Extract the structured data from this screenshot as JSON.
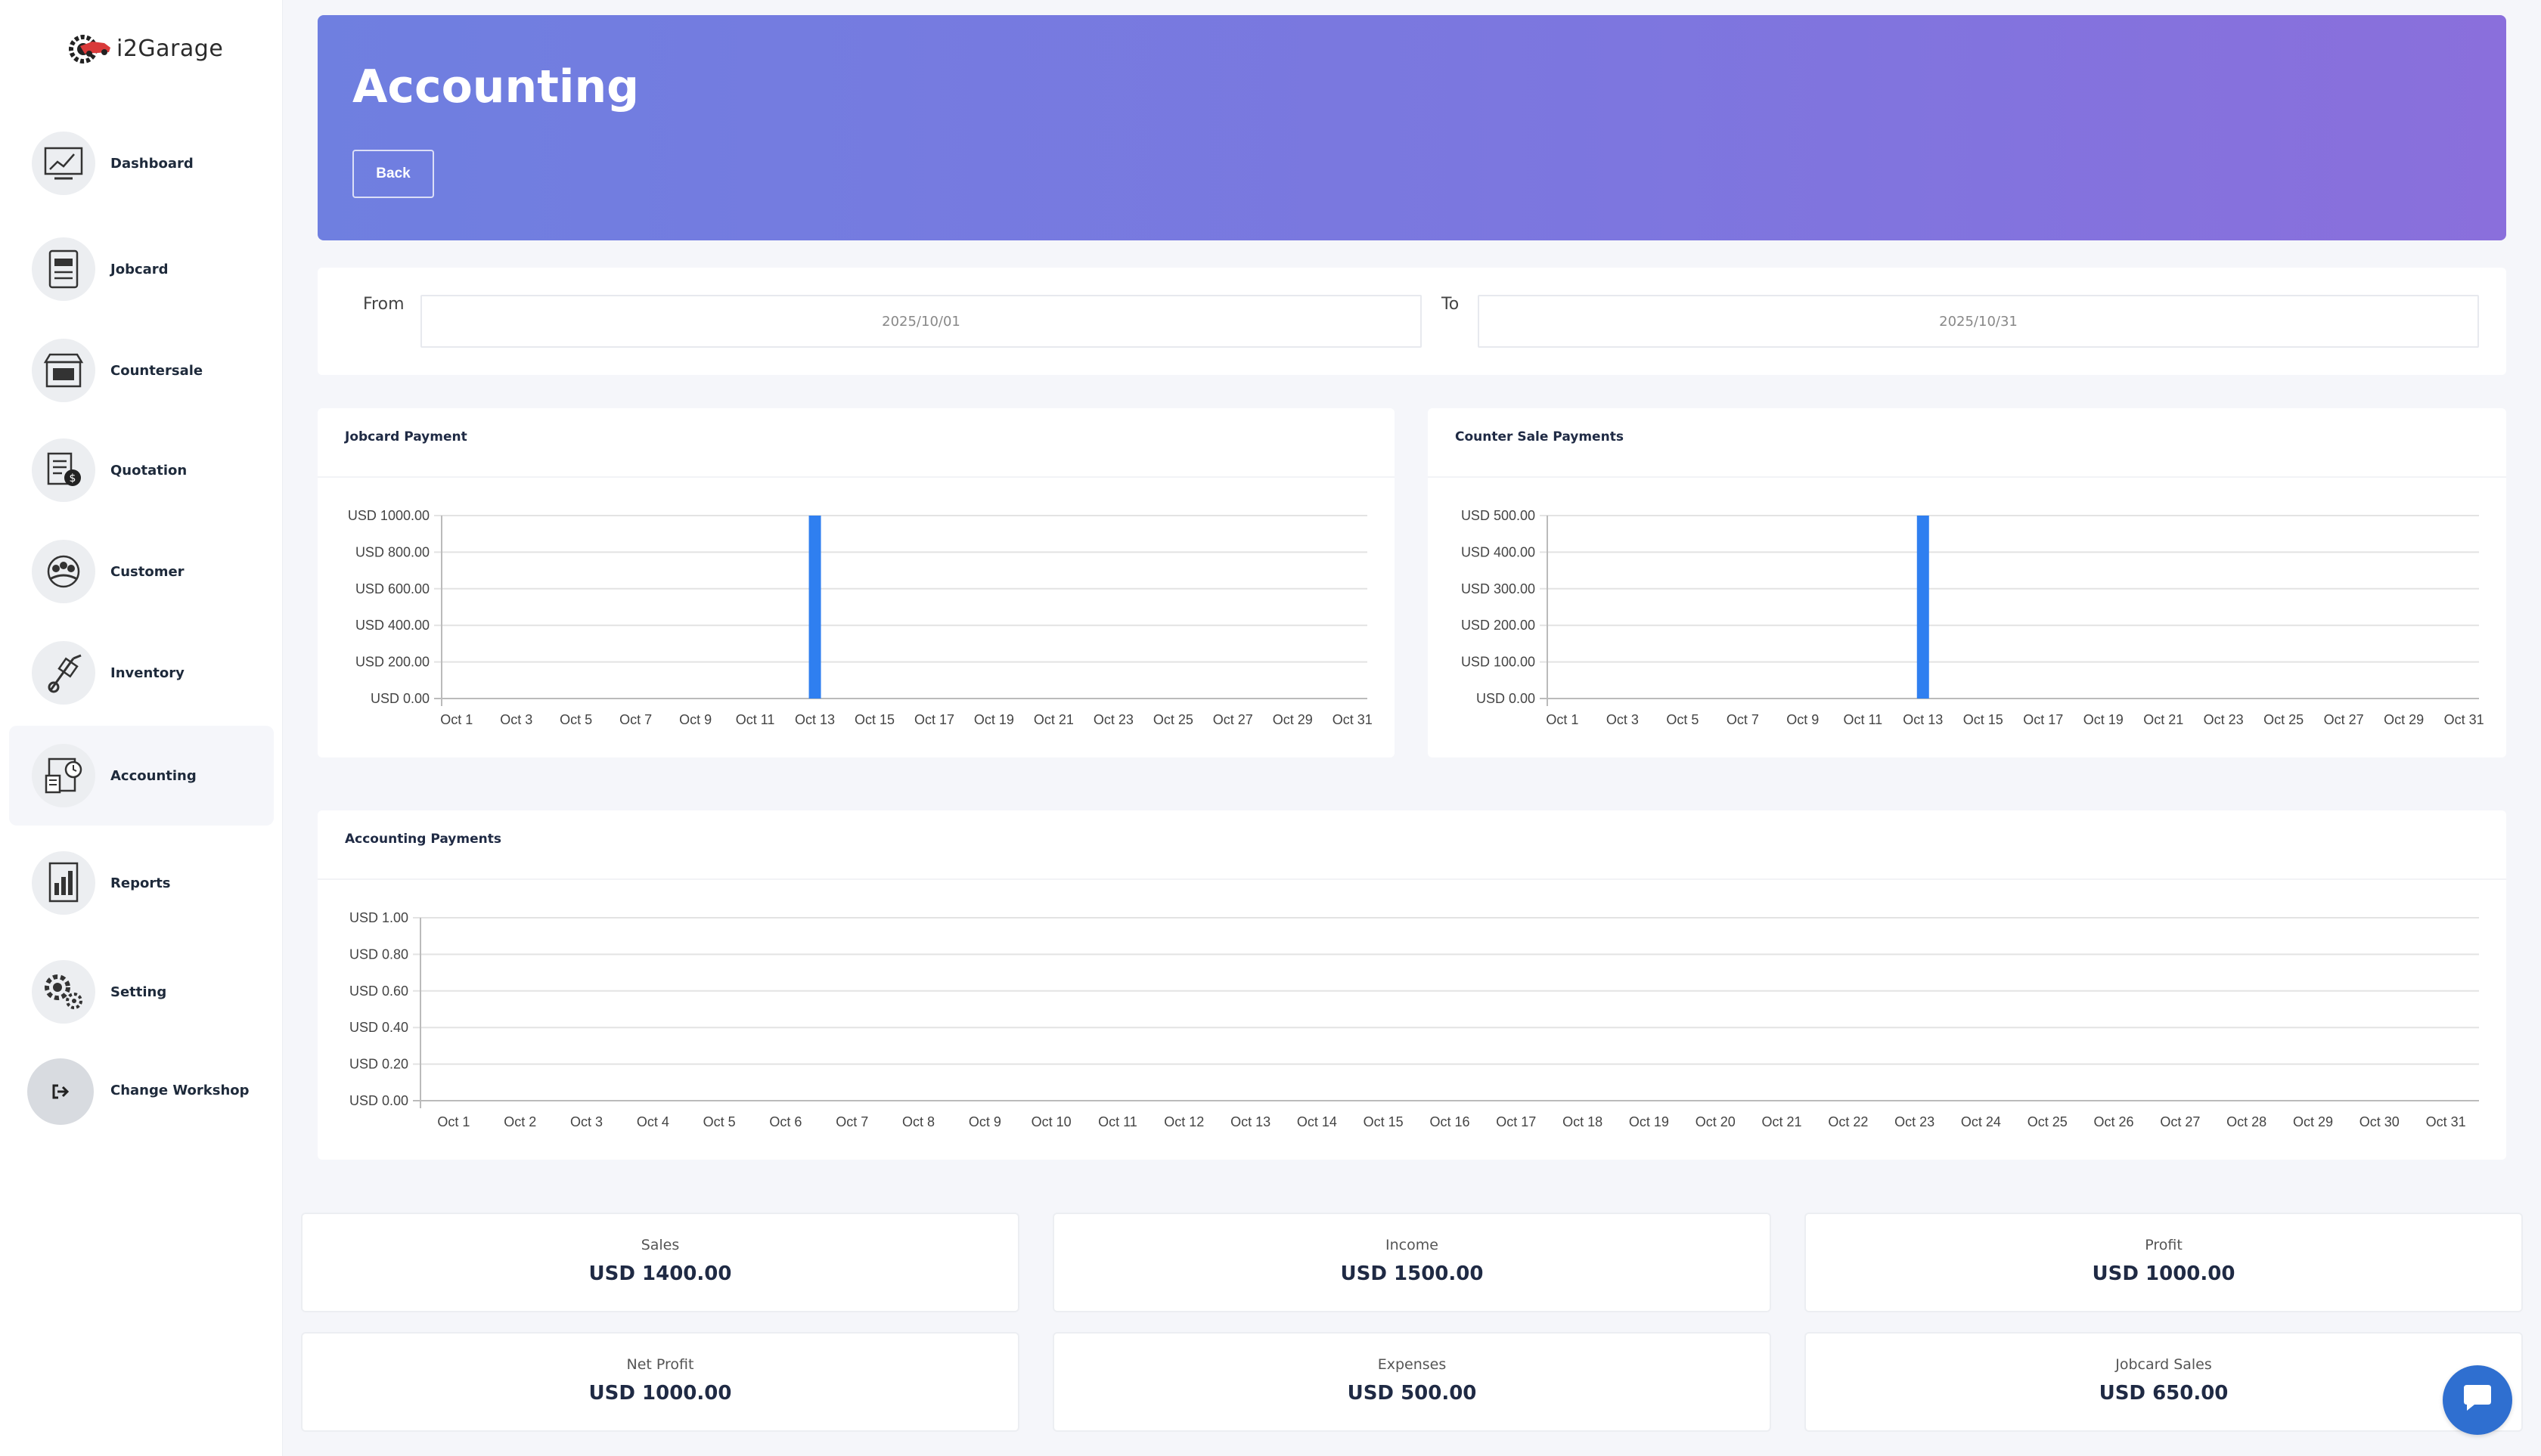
{
  "app": {
    "name": "i2Garage"
  },
  "sidebar": {
    "items": [
      {
        "label": "Dashboard",
        "icon": "dashboard-icon"
      },
      {
        "label": "Jobcard",
        "icon": "jobcard-icon"
      },
      {
        "label": "Countersale",
        "icon": "store-icon"
      },
      {
        "label": "Quotation",
        "icon": "quotation-icon"
      },
      {
        "label": "Customer",
        "icon": "customer-icon"
      },
      {
        "label": "Inventory",
        "icon": "trolley-icon"
      },
      {
        "label": "Accounting",
        "icon": "accounting-icon",
        "active": true
      },
      {
        "label": "Reports",
        "icon": "report-icon"
      },
      {
        "label": "Setting",
        "icon": "gears-icon"
      },
      {
        "label": "Change Workshop",
        "icon": "sign-out-icon"
      }
    ]
  },
  "header": {
    "title": "Accounting",
    "back_label": "Back"
  },
  "filter": {
    "from_label": "From",
    "from_value": "2025/10/01",
    "to_label": "To",
    "to_value": "2025/10/31"
  },
  "colors": {
    "bar": "#2f7ff0",
    "accent_start": "#6f7fe0",
    "accent_end": "#8a6fdc",
    "chat": "#2f6fd0"
  },
  "charts": {
    "jobcard": {
      "title": "Jobcard Payment"
    },
    "counter": {
      "title": "Counter Sale Payments"
    },
    "accounting": {
      "title": "Accounting Payments"
    }
  },
  "chart_data": [
    {
      "type": "bar",
      "title": "Jobcard Payment",
      "categories": [
        "Oct 1",
        "Oct 2",
        "Oct 3",
        "Oct 4",
        "Oct 5",
        "Oct 6",
        "Oct 7",
        "Oct 8",
        "Oct 9",
        "Oct 10",
        "Oct 11",
        "Oct 12",
        "Oct 13",
        "Oct 14",
        "Oct 15",
        "Oct 16",
        "Oct 17",
        "Oct 18",
        "Oct 19",
        "Oct 20",
        "Oct 21",
        "Oct 22",
        "Oct 23",
        "Oct 24",
        "Oct 25",
        "Oct 26",
        "Oct 27",
        "Oct 28",
        "Oct 29",
        "Oct 30",
        "Oct 31"
      ],
      "x_tick_labels": [
        "Oct 1",
        "Oct 3",
        "Oct 5",
        "Oct 7",
        "Oct 9",
        "Oct 11",
        "Oct 13",
        "Oct 15",
        "Oct 17",
        "Oct 19",
        "Oct 21",
        "Oct 23",
        "Oct 25",
        "Oct 27",
        "Oct 29",
        "Oct 31"
      ],
      "values": [
        0,
        0,
        0,
        0,
        0,
        0,
        0,
        0,
        0,
        0,
        0,
        0,
        1000,
        0,
        0,
        0,
        0,
        0,
        0,
        0,
        0,
        0,
        0,
        0,
        0,
        0,
        0,
        0,
        0,
        0,
        0
      ],
      "y_ticks": [
        "USD 0.00",
        "USD 200.00",
        "USD 400.00",
        "USD 600.00",
        "USD 800.00",
        "USD 1000.00"
      ],
      "ylim": [
        0,
        1000
      ],
      "grid": true
    },
    {
      "type": "bar",
      "title": "Counter Sale Payments",
      "categories": [
        "Oct 1",
        "Oct 2",
        "Oct 3",
        "Oct 4",
        "Oct 5",
        "Oct 6",
        "Oct 7",
        "Oct 8",
        "Oct 9",
        "Oct 10",
        "Oct 11",
        "Oct 12",
        "Oct 13",
        "Oct 14",
        "Oct 15",
        "Oct 16",
        "Oct 17",
        "Oct 18",
        "Oct 19",
        "Oct 20",
        "Oct 21",
        "Oct 22",
        "Oct 23",
        "Oct 24",
        "Oct 25",
        "Oct 26",
        "Oct 27",
        "Oct 28",
        "Oct 29",
        "Oct 30",
        "Oct 31"
      ],
      "x_tick_labels": [
        "Oct 1",
        "Oct 3",
        "Oct 5",
        "Oct 7",
        "Oct 9",
        "Oct 11",
        "Oct 13",
        "Oct 15",
        "Oct 17",
        "Oct 19",
        "Oct 21",
        "Oct 23",
        "Oct 25",
        "Oct 27",
        "Oct 29",
        "Oct 31"
      ],
      "values": [
        0,
        0,
        0,
        0,
        0,
        0,
        0,
        0,
        0,
        0,
        0,
        0,
        500,
        0,
        0,
        0,
        0,
        0,
        0,
        0,
        0,
        0,
        0,
        0,
        0,
        0,
        0,
        0,
        0,
        0,
        0
      ],
      "y_ticks": [
        "USD 0.00",
        "USD 100.00",
        "USD 200.00",
        "USD 300.00",
        "USD 400.00",
        "USD 500.00"
      ],
      "ylim": [
        0,
        500
      ],
      "grid": true
    },
    {
      "type": "bar",
      "title": "Accounting Payments",
      "categories": [
        "Oct 1",
        "Oct 2",
        "Oct 3",
        "Oct 4",
        "Oct 5",
        "Oct 6",
        "Oct 7",
        "Oct 8",
        "Oct 9",
        "Oct 10",
        "Oct 11",
        "Oct 12",
        "Oct 13",
        "Oct 14",
        "Oct 15",
        "Oct 16",
        "Oct 17",
        "Oct 18",
        "Oct 19",
        "Oct 20",
        "Oct 21",
        "Oct 22",
        "Oct 23",
        "Oct 24",
        "Oct 25",
        "Oct 26",
        "Oct 27",
        "Oct 28",
        "Oct 29",
        "Oct 30",
        "Oct 31"
      ],
      "x_tick_labels": [
        "Oct 1",
        "Oct 2",
        "Oct 3",
        "Oct 4",
        "Oct 5",
        "Oct 6",
        "Oct 7",
        "Oct 8",
        "Oct 9",
        "Oct 10",
        "Oct 11",
        "Oct 12",
        "Oct 13",
        "Oct 14",
        "Oct 15",
        "Oct 16",
        "Oct 17",
        "Oct 18",
        "Oct 19",
        "Oct 20",
        "Oct 21",
        "Oct 22",
        "Oct 23",
        "Oct 24",
        "Oct 25",
        "Oct 26",
        "Oct 27",
        "Oct 28",
        "Oct 29",
        "Oct 30",
        "Oct 31"
      ],
      "values": [
        0,
        0,
        0,
        0,
        0,
        0,
        0,
        0,
        0,
        0,
        0,
        0,
        0,
        0,
        0,
        0,
        0,
        0,
        0,
        0,
        0,
        0,
        0,
        0,
        0,
        0,
        0,
        0,
        0,
        0,
        0
      ],
      "y_ticks": [
        "USD 0.00",
        "USD 0.20",
        "USD 0.40",
        "USD 0.60",
        "USD 0.80",
        "USD 1.00"
      ],
      "ylim": [
        0,
        1
      ],
      "grid": true
    }
  ],
  "stats": [
    {
      "label": "Sales",
      "value": "USD 1400.00"
    },
    {
      "label": "Income",
      "value": "USD 1500.00"
    },
    {
      "label": "Profit",
      "value": "USD 1000.00"
    },
    {
      "label": "Net Profit",
      "value": "USD 1000.00"
    },
    {
      "label": "Expenses",
      "value": "USD 500.00"
    },
    {
      "label": "Jobcard Sales",
      "value": "USD 650.00"
    }
  ]
}
